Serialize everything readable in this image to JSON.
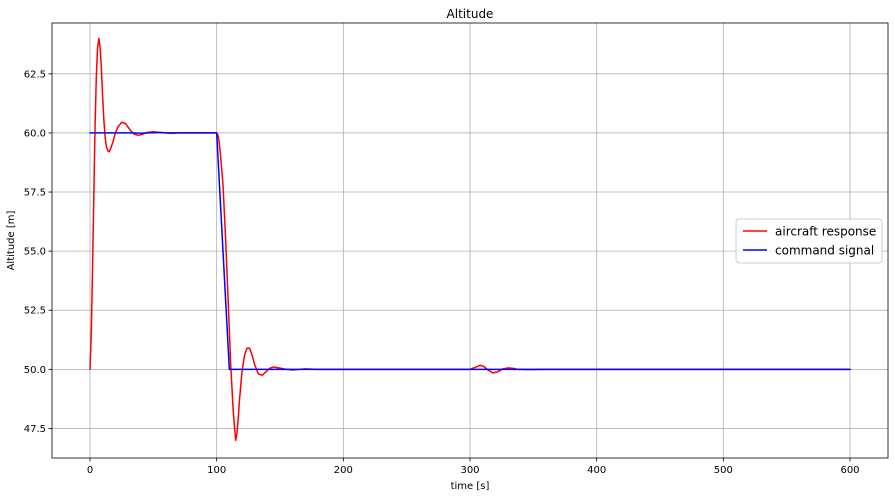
{
  "chart_data": {
    "type": "line",
    "title": "Altitude",
    "xlabel": "time [s]",
    "ylabel": "Altitude [m]",
    "xlim": [
      -30,
      630
    ],
    "ylim": [
      46.25,
      64.65
    ],
    "xticks": [
      0,
      100,
      200,
      300,
      400,
      500,
      600
    ],
    "xtick_labels": [
      "0",
      "100",
      "200",
      "300",
      "400",
      "500",
      "600"
    ],
    "yticks": [
      47.5,
      50.0,
      52.5,
      55.0,
      57.5,
      60.0,
      62.5
    ],
    "ytick_labels": [
      "47.5",
      "50.0",
      "52.5",
      "55.0",
      "57.5",
      "60.0",
      "62.5"
    ],
    "grid": true,
    "legend_position": "center-right",
    "series": [
      {
        "name": "aircraft response",
        "color": "#ff0000",
        "x": [
          0,
          1,
          2,
          3,
          4,
          5,
          6,
          7,
          8,
          9,
          10,
          11,
          12,
          13,
          14,
          15,
          16,
          18,
          20,
          22,
          25,
          28,
          30,
          32,
          35,
          38,
          42,
          45,
          50,
          55,
          60,
          65,
          70,
          80,
          90,
          100,
          101,
          102,
          103,
          105,
          107,
          109,
          111,
          113,
          114,
          115,
          116,
          117,
          118,
          120,
          122,
          124,
          126,
          128,
          130,
          133,
          136,
          139,
          142,
          145,
          150,
          155,
          160,
          170,
          180,
          200,
          250,
          300,
          305,
          308,
          311,
          314,
          318,
          322,
          326,
          330,
          334,
          338,
          345,
          360,
          400,
          500,
          600
        ],
        "y": [
          50.0,
          51.5,
          54.2,
          57.3,
          60.3,
          62.4,
          63.6,
          64.0,
          63.6,
          62.7,
          61.5,
          60.5,
          59.8,
          59.4,
          59.25,
          59.2,
          59.3,
          59.6,
          60.0,
          60.25,
          60.45,
          60.4,
          60.25,
          60.1,
          59.95,
          59.9,
          59.95,
          60.02,
          60.05,
          60.02,
          60.0,
          59.98,
          60.0,
          60.0,
          60.0,
          60.0,
          59.9,
          59.6,
          59.1,
          57.8,
          55.6,
          53.0,
          50.3,
          48.3,
          47.6,
          47.0,
          47.3,
          47.9,
          48.7,
          49.9,
          50.6,
          50.9,
          50.9,
          50.6,
          50.2,
          49.8,
          49.75,
          49.9,
          50.05,
          50.1,
          50.05,
          50.0,
          49.97,
          50.02,
          50.0,
          50.0,
          50.0,
          50.0,
          50.1,
          50.17,
          50.12,
          49.98,
          49.85,
          49.9,
          50.02,
          50.06,
          50.04,
          50.0,
          49.99,
          50.0,
          50.0,
          50.0,
          50.0
        ]
      },
      {
        "name": "command signal",
        "color": "#0000ff",
        "x": [
          0,
          10,
          20,
          30,
          40,
          50,
          55,
          60,
          70,
          80,
          90,
          100,
          110,
          115,
          120,
          130,
          140,
          160,
          180,
          200,
          300,
          400,
          500,
          600
        ],
        "y": [
          60.0,
          60.0,
          60.0,
          60.0,
          59.99,
          60.01,
          60.02,
          60.0,
          60.0,
          60.0,
          60.0,
          60.0,
          50.0,
          50.0,
          50.0,
          50.0,
          50.0,
          50.0,
          50.0,
          50.0,
          50.0,
          50.0,
          50.0,
          50.0
        ]
      }
    ]
  }
}
